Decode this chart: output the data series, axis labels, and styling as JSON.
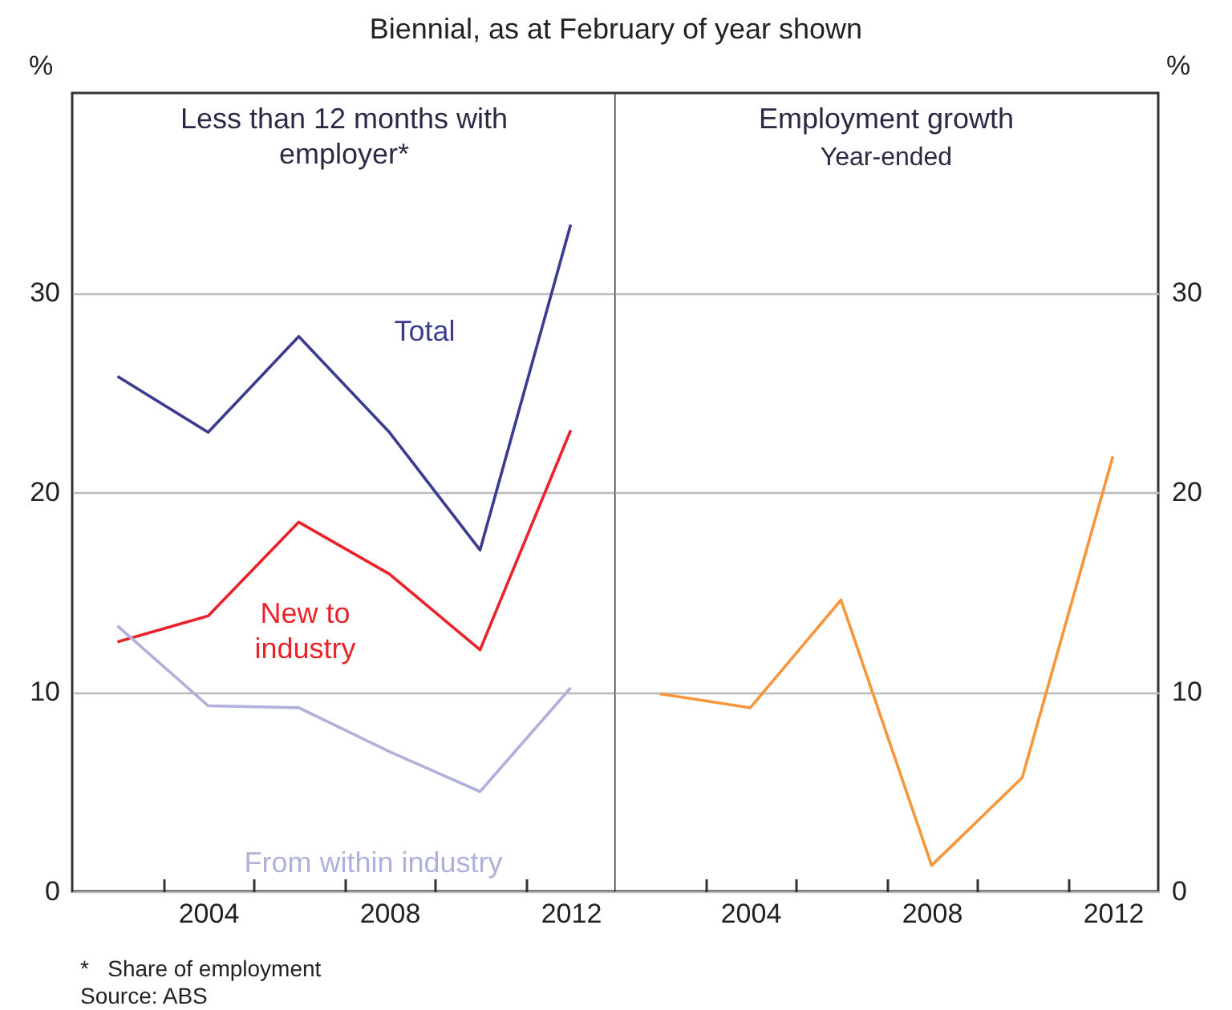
{
  "chart_data": [
    {
      "type": "line",
      "title": "Less than 12 months with employer*",
      "ylabel": "%",
      "x": [
        2002,
        2004,
        2006,
        2008,
        2010,
        2012
      ],
      "xlim": [
        2001,
        2013
      ],
      "xticks": [
        {
          "value": 2003,
          "label": null
        },
        2004,
        {
          "value": 2005,
          "label": null
        },
        {
          "value": 2007,
          "label": null
        },
        2008,
        {
          "value": 2009,
          "label": null
        },
        {
          "value": 2011,
          "label": null
        },
        2012
      ],
      "ylim": [
        0,
        40
      ],
      "yticks": [
        0,
        10,
        20,
        30
      ],
      "grid": "y",
      "marker": "none",
      "line_style": "solid",
      "series": [
        {
          "name": "Total",
          "color": "#3b3b8f",
          "values": [
            25.8,
            23.0,
            27.8,
            23.0,
            17.1,
            33.4
          ]
        },
        {
          "name": "New to industry",
          "color": "#e8232a",
          "values": [
            12.5,
            13.8,
            18.5,
            15.9,
            12.1,
            23.1
          ]
        },
        {
          "name": "From within industry",
          "color": "#b0b0dc",
          "values": [
            13.3,
            9.3,
            9.2,
            7.0,
            5.0,
            10.2
          ]
        }
      ],
      "annotations": [
        "Biennial, as at February of year shown",
        "*   Share of employment",
        "Source: ABS"
      ]
    },
    {
      "type": "line",
      "title": "Employment growth",
      "subtitle": "Year-ended",
      "y2label": "%",
      "x": [
        2002,
        2004,
        2006,
        2008,
        2010,
        2012
      ],
      "xlim": [
        2001,
        2013
      ],
      "xticks": [
        {
          "value": 2003,
          "label": null
        },
        2004,
        {
          "value": 2005,
          "label": null
        },
        {
          "value": 2007,
          "label": null
        },
        2008,
        {
          "value": 2009,
          "label": null
        },
        {
          "value": 2011,
          "label": null
        },
        2012
      ],
      "y2lim": [
        0,
        40
      ],
      "y2ticks": [
        0,
        10,
        20,
        30
      ],
      "grid": "y",
      "marker": "none",
      "line_style": "solid",
      "series": [
        {
          "color": "#f7963c",
          "axis": "y2",
          "values": [
            9.9,
            9.2,
            14.6,
            1.3,
            5.7,
            21.8
          ]
        }
      ]
    }
  ]
}
